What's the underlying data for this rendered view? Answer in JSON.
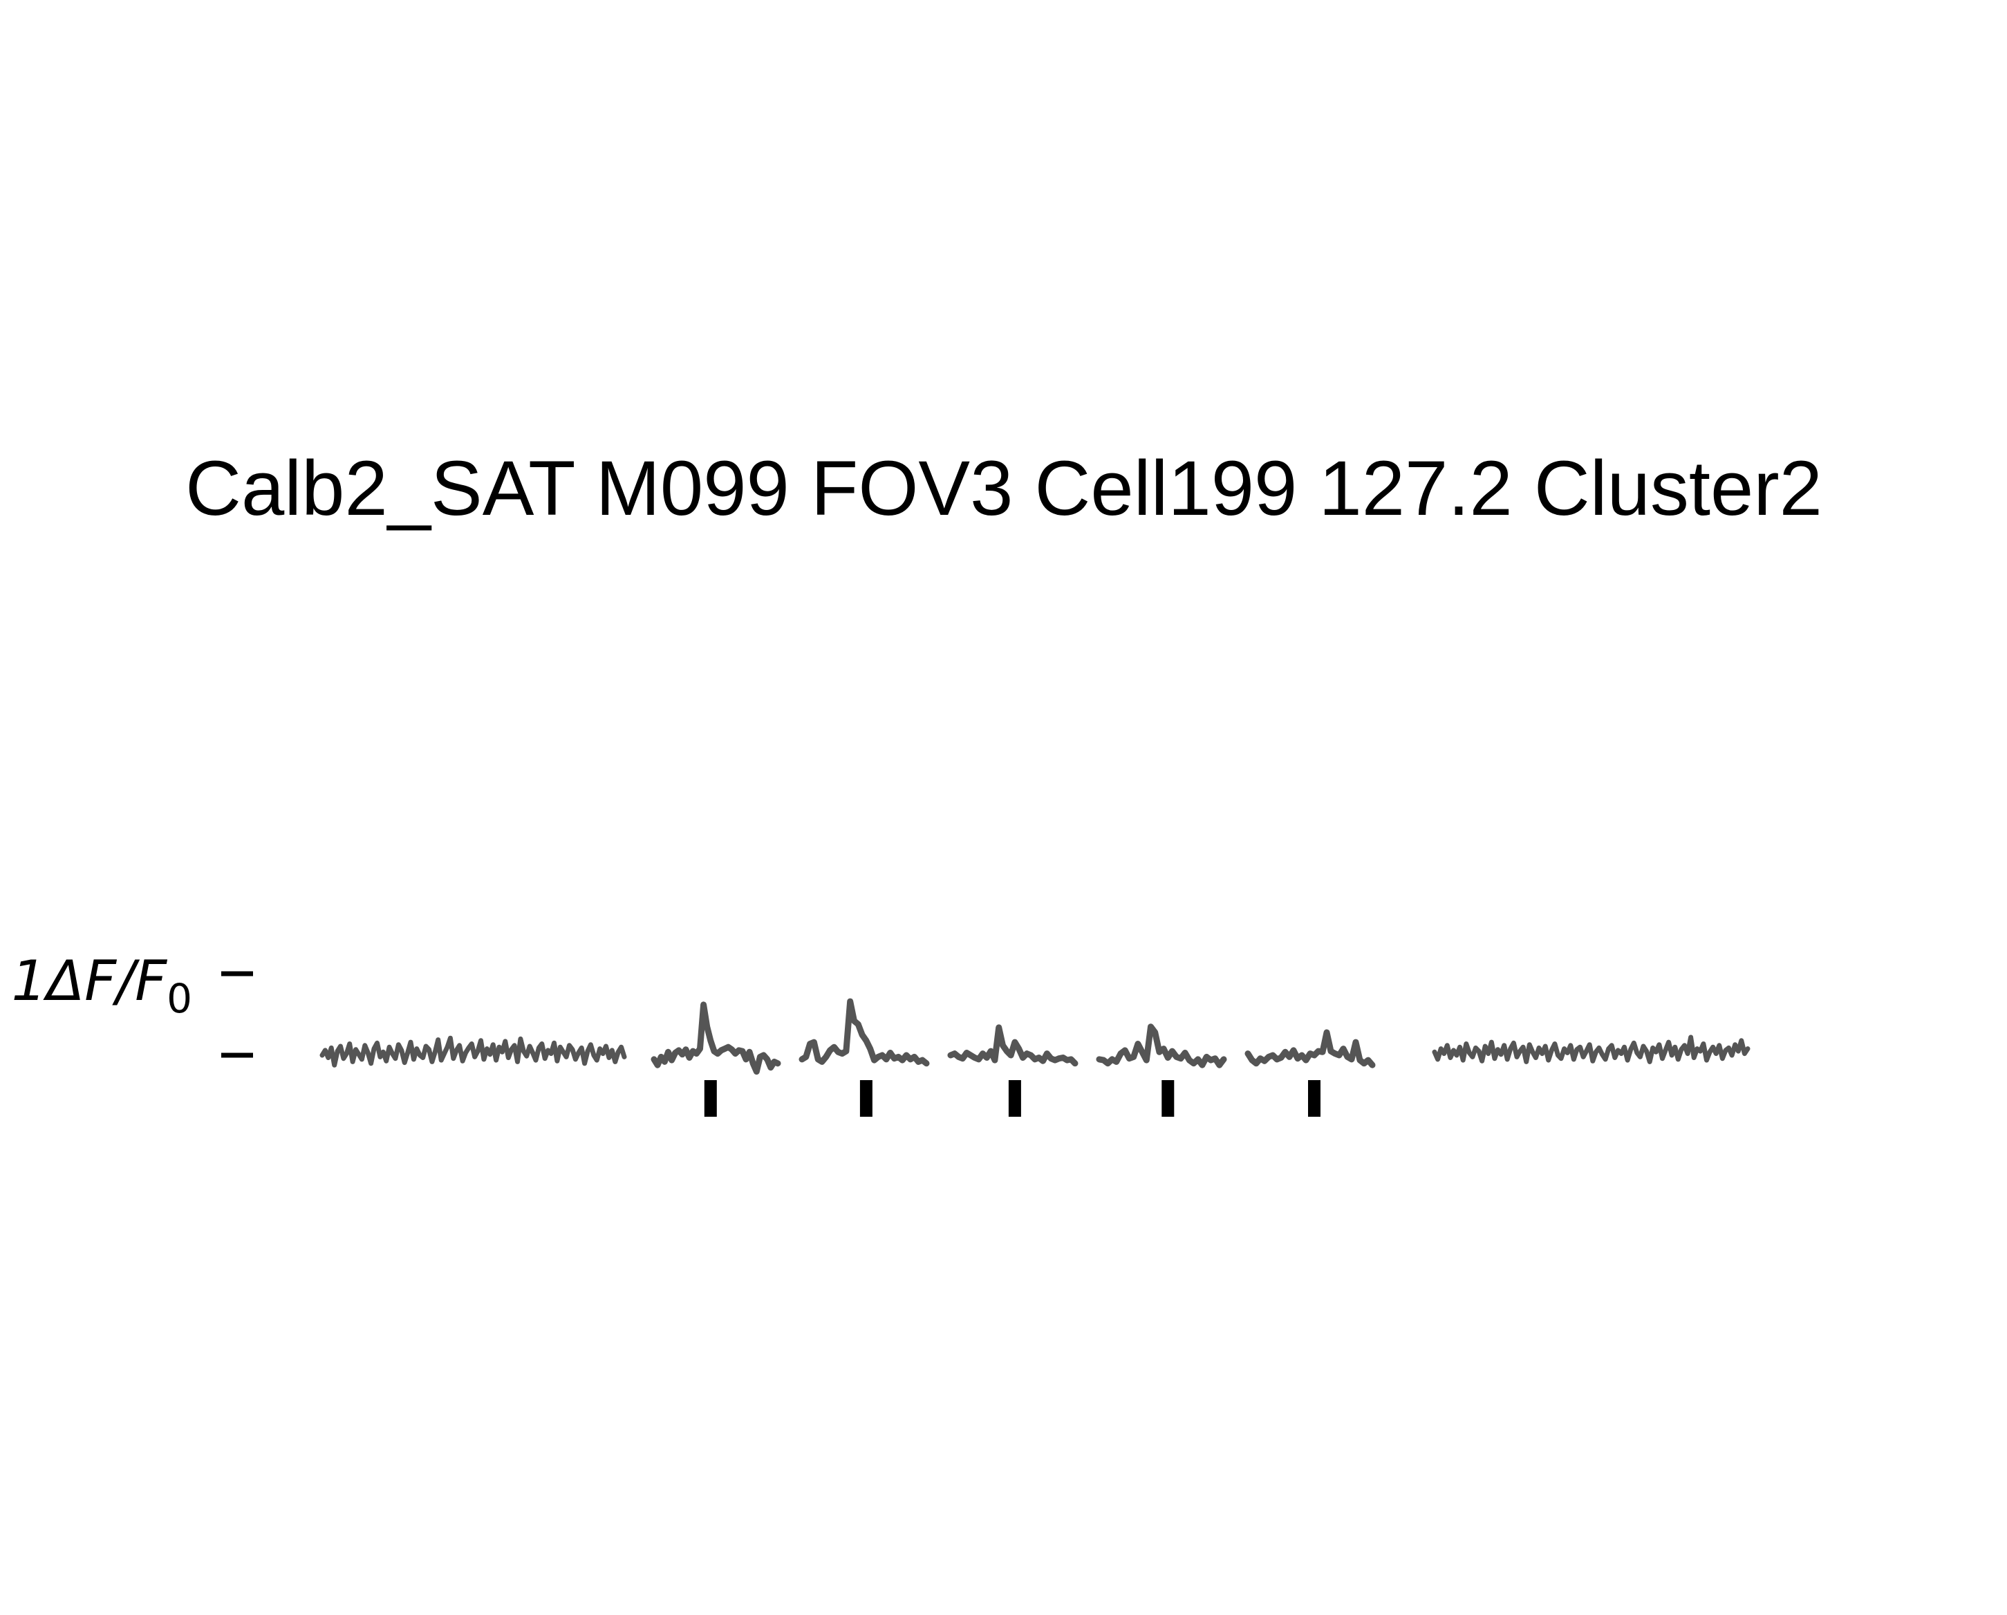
{
  "title": "Calb2_SAT M099 FOV3 Cell199 127.2 Cluster2",
  "scale_bar": {
    "value_label": "1",
    "unit_label": "ΔF/F",
    "unit_sub": "0",
    "value": 1
  },
  "colors": {
    "trace": "#555555",
    "stim": "#000000",
    "text": "#000000",
    "background": "#ffffff"
  },
  "chart_data": {
    "type": "line",
    "title": "Calb2_SAT M099 FOV3 Cell199 127.2 Cluster2",
    "xlabel": "",
    "ylabel": "",
    "ylim": [
      -0.3,
      1.2
    ],
    "grid": false,
    "axes_visible": false,
    "series": [
      {
        "name": "",
        "kind": "spontaneous",
        "values": [
          0.0,
          0.06,
          -0.03,
          0.09,
          -0.12,
          0.05,
          0.11,
          -0.04,
          0.02,
          0.14,
          -0.08,
          0.07,
          0.01,
          -0.05,
          0.12,
          0.03,
          -0.1,
          0.08,
          0.15,
          -0.02,
          0.04,
          -0.07,
          0.1,
          0.02,
          -0.04,
          0.13,
          0.06,
          -0.09,
          0.03,
          0.16,
          -0.05,
          0.08,
          0.0,
          -0.03,
          0.11,
          0.07,
          -0.08,
          0.04,
          0.19,
          -0.06,
          0.02,
          0.1,
          0.21,
          -0.04,
          0.06,
          0.12,
          -0.07,
          0.03,
          0.09,
          0.14,
          -0.02,
          0.05,
          0.18,
          -0.05,
          0.08,
          0.01,
          0.13,
          -0.06,
          0.1,
          0.04,
          0.17,
          -0.03,
          0.07,
          0.12,
          -0.08,
          0.2,
          0.05,
          -0.01,
          0.11,
          0.03,
          -0.06,
          0.09,
          0.14,
          -0.04,
          0.06,
          0.02,
          0.15,
          -0.07,
          0.1,
          0.04,
          -0.02,
          0.12,
          0.07,
          -0.05,
          0.03,
          0.09,
          -0.1,
          0.05,
          0.13,
          0.0,
          -0.06,
          0.08,
          0.02,
          0.11,
          -0.03,
          0.06,
          -0.08,
          0.04,
          0.1,
          -0.02
        ]
      },
      {
        "name": "",
        "kind": "trial",
        "stim_index": 16,
        "values": [
          -0.05,
          -0.12,
          -0.02,
          -0.08,
          0.04,
          -0.06,
          0.03,
          0.06,
          0.01,
          0.07,
          -0.03,
          0.05,
          0.02,
          0.08,
          0.62,
          0.35,
          0.18,
          0.05,
          0.02,
          0.06,
          0.08,
          0.1,
          0.07,
          0.02,
          0.06,
          0.05,
          -0.05,
          0.04,
          -0.1,
          -0.2,
          -0.02,
          0.0,
          -0.05,
          -0.15,
          -0.08,
          -0.1
        ]
      },
      {
        "name": "",
        "kind": "trial",
        "stim_index": 16,
        "values": [
          -0.05,
          -0.02,
          0.14,
          0.16,
          -0.05,
          -0.08,
          -0.02,
          0.06,
          0.1,
          0.04,
          0.02,
          0.05,
          0.66,
          0.42,
          0.38,
          0.25,
          0.18,
          0.08,
          -0.06,
          -0.02,
          0.0,
          -0.05,
          0.03,
          -0.04,
          -0.02,
          -0.06,
          0.0,
          -0.05,
          -0.02,
          -0.08,
          -0.06,
          -0.1
        ]
      },
      {
        "name": "",
        "kind": "trial",
        "stim_index": 16,
        "values": [
          0.0,
          0.02,
          -0.02,
          -0.04,
          0.03,
          0.0,
          -0.03,
          -0.05,
          0.02,
          -0.03,
          0.05,
          -0.06,
          0.34,
          0.12,
          0.05,
          0.0,
          0.16,
          0.08,
          -0.03,
          0.02,
          0.0,
          -0.05,
          -0.03,
          -0.07,
          0.02,
          -0.04,
          -0.06,
          -0.04,
          -0.03,
          -0.06,
          -0.05,
          -0.1
        ]
      },
      {
        "name": "",
        "kind": "trial",
        "stim_index": 16,
        "values": [
          -0.05,
          -0.06,
          -0.1,
          -0.05,
          -0.08,
          0.02,
          0.06,
          -0.04,
          -0.02,
          0.14,
          0.04,
          -0.06,
          0.35,
          0.28,
          0.04,
          0.08,
          -0.03,
          0.05,
          -0.02,
          -0.04,
          0.03,
          -0.06,
          -0.1,
          -0.05,
          -0.12,
          -0.02,
          -0.06,
          -0.04,
          -0.12,
          -0.05
        ]
      },
      {
        "name": "",
        "kind": "trial",
        "stim_index": 16,
        "values": [
          0.02,
          -0.06,
          -0.1,
          -0.04,
          -0.07,
          -0.02,
          0.0,
          -0.05,
          -0.03,
          0.04,
          -0.02,
          0.06,
          -0.04,
          0.0,
          -0.06,
          0.02,
          0.0,
          0.05,
          0.04,
          0.28,
          0.05,
          0.02,
          0.0,
          0.08,
          -0.02,
          -0.05,
          0.16,
          -0.06,
          -0.1,
          -0.06,
          -0.12
        ]
      },
      {
        "name": "",
        "kind": "spontaneous",
        "values": [
          0.04,
          -0.05,
          0.08,
          0.02,
          0.12,
          -0.03,
          0.06,
          0.0,
          0.1,
          -0.06,
          0.14,
          0.03,
          -0.02,
          0.09,
          0.05,
          -0.07,
          0.11,
          0.02,
          0.16,
          -0.04,
          0.07,
          0.01,
          0.12,
          -0.05,
          0.08,
          0.15,
          -0.02,
          0.05,
          0.1,
          -0.08,
          0.13,
          0.04,
          -0.03,
          0.09,
          0.02,
          0.11,
          -0.06,
          0.06,
          0.14,
          0.0,
          -0.04,
          0.08,
          0.03,
          0.12,
          -0.05,
          0.07,
          0.1,
          -0.02,
          0.05,
          0.13,
          -0.07,
          0.04,
          0.09,
          0.01,
          -0.05,
          0.08,
          0.12,
          -0.03,
          0.06,
          0.02,
          0.1,
          -0.06,
          0.07,
          0.15,
          0.03,
          -0.02,
          0.11,
          0.05,
          -0.08,
          0.09,
          0.04,
          0.13,
          -0.04,
          0.06,
          0.16,
          0.0,
          0.1,
          -0.05,
          0.07,
          0.12,
          0.02,
          0.22,
          -0.03,
          0.08,
          0.05,
          0.14,
          -0.06,
          0.04,
          0.1,
          0.02,
          0.12,
          -0.04,
          0.06,
          0.09,
          0.0,
          0.13,
          0.05,
          0.18,
          0.02,
          0.08
        ]
      }
    ]
  }
}
